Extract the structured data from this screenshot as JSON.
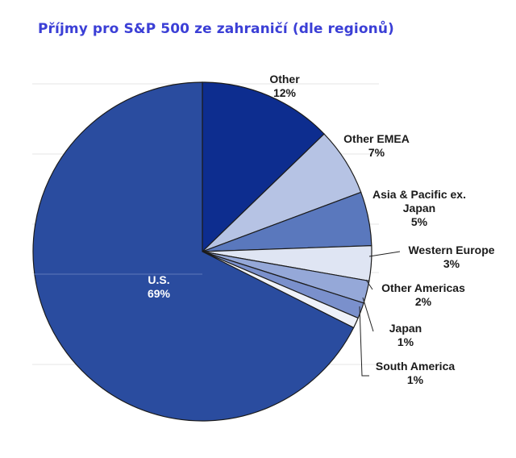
{
  "title": "Příjmy pro S&P 500 ze zahraničí (dle regionů)",
  "chart_data": {
    "type": "pie",
    "title": "Příjmy pro S&P 500 ze zahraničí (dle regionů)",
    "slices": [
      {
        "name": "Other",
        "label_lines": [
          "Other"
        ],
        "value": 12,
        "value_label": "12%",
        "color": "#0d2d8f"
      },
      {
        "name": "Other EMEA",
        "label_lines": [
          "Other EMEA"
        ],
        "value": 7,
        "value_label": "7%",
        "color": "#b6c3e4"
      },
      {
        "name": "Asia & Pacific ex. Japan",
        "label_lines": [
          "Asia & Pacific ex.",
          "Japan"
        ],
        "value": 5,
        "value_label": "5%",
        "color": "#5a78bd"
      },
      {
        "name": "Western Europe",
        "label_lines": [
          "Western Europe"
        ],
        "value": 3,
        "value_label": "3%",
        "color": "#dfe5f3"
      },
      {
        "name": "Other Americas",
        "label_lines": [
          "Other Americas"
        ],
        "value": 2,
        "value_label": "2%",
        "color": "#95a8d8"
      },
      {
        "name": "Japan",
        "label_lines": [
          "Japan"
        ],
        "value": 1,
        "value_label": "1%",
        "color": "#7a90cc"
      },
      {
        "name": "South America",
        "label_lines": [
          "South America"
        ],
        "value": 1,
        "value_label": "1%",
        "color": "#eef1f9"
      },
      {
        "name": "U.S.",
        "label_lines": [
          "U.S."
        ],
        "value": 69,
        "value_label": "69%",
        "color": "#2a4c9f"
      }
    ],
    "legend": "none",
    "grid": true
  }
}
